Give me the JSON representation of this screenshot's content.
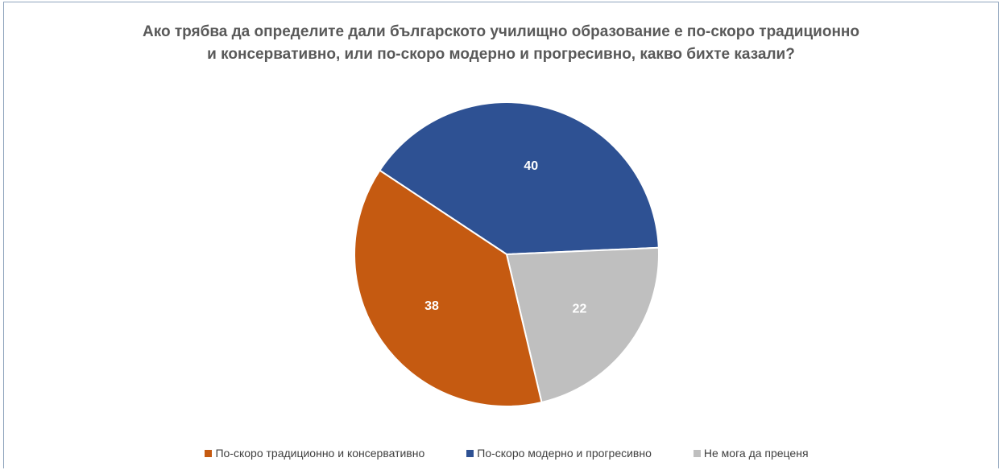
{
  "chart_data": {
    "type": "pie",
    "title": "Ако трябва да определите дали българското училищно образование е по-скоро традиционно и консервативно, или по-скоро модерно и прогресивно, какво бихте казали?",
    "title_lines": [
      "Ако трябва да определите дали българското училищно образование е по-скоро традиционно",
      "и консервативно, или по-скоро модерно и прогресивно, какво бихте казали?"
    ],
    "slices": [
      {
        "label": "По-скоро модерно и прогресивно",
        "value": 40,
        "color": "#2e5193"
      },
      {
        "label": "Не мога да преценя",
        "value": 22,
        "color": "#bfbfbf"
      },
      {
        "label": "По-скоро традиционно и консервативно",
        "value": 38,
        "color": "#c55a11"
      }
    ],
    "legend": [
      {
        "label": "По-скоро традиционно и консервативно",
        "color": "#c55a11"
      },
      {
        "label": "По-скоро модерно и прогресивно",
        "color": "#2e5193"
      },
      {
        "label": "Не мога да преценя",
        "color": "#bfbfbf"
      }
    ],
    "legend_position": "bottom",
    "data_label_color": "#ffffff"
  }
}
